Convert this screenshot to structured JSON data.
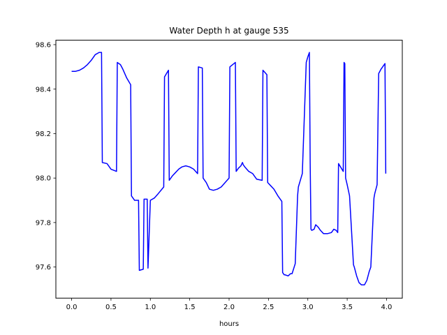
{
  "chart_data": {
    "type": "line",
    "title": "Water Depth h at gauge 535",
    "xlabel": "hours",
    "ylabel": "",
    "xlim": [
      -0.2,
      4.2
    ],
    "ylim": [
      97.46,
      98.62
    ],
    "xticks": [
      0.0,
      0.5,
      1.0,
      1.5,
      2.0,
      2.5,
      3.0,
      3.5,
      4.0
    ],
    "xtick_labels": [
      "0.0",
      "0.5",
      "1.0",
      "1.5",
      "2.0",
      "2.5",
      "3.0",
      "3.5",
      "4.0"
    ],
    "yticks": [
      97.6,
      97.8,
      98.0,
      98.2,
      98.4,
      98.6
    ],
    "ytick_labels": [
      "97.6",
      "97.8",
      "98.0",
      "98.2",
      "98.4",
      "98.6"
    ],
    "grid": false,
    "legend": "none",
    "series": [
      {
        "color": "#0000ff",
        "x": [
          0.0,
          0.05,
          0.1,
          0.15,
          0.2,
          0.25,
          0.3,
          0.35,
          0.38,
          0.39,
          0.45,
          0.5,
          0.57,
          0.58,
          0.62,
          0.65,
          0.7,
          0.75,
          0.76,
          0.8,
          0.85,
          0.86,
          0.91,
          0.92,
          0.96,
          0.97,
          1.0,
          1.05,
          1.1,
          1.17,
          1.18,
          1.23,
          1.24,
          1.28,
          1.32,
          1.36,
          1.4,
          1.45,
          1.5,
          1.55,
          1.6,
          1.61,
          1.66,
          1.67,
          1.71,
          1.75,
          1.8,
          1.85,
          1.9,
          1.95,
          2.0,
          2.01,
          2.08,
          2.09,
          2.12,
          2.15,
          2.17,
          2.18,
          2.2,
          2.25,
          2.3,
          2.35,
          2.42,
          2.43,
          2.48,
          2.49,
          2.53,
          2.57,
          2.62,
          2.67,
          2.68,
          2.7,
          2.71,
          2.75,
          2.78,
          2.8,
          2.84,
          2.87,
          2.88,
          2.93,
          2.98,
          3.0,
          3.02,
          3.03,
          3.04,
          3.05,
          3.08,
          3.1,
          3.13,
          3.16,
          3.2,
          3.25,
          3.3,
          3.33,
          3.36,
          3.38,
          3.39,
          3.45,
          3.46,
          3.47,
          3.48,
          3.5,
          3.53,
          3.58,
          3.59,
          3.62,
          3.65,
          3.68,
          3.72,
          3.75,
          3.78,
          3.8,
          3.84,
          3.85,
          3.88,
          3.9,
          3.93,
          3.98,
          3.99
        ],
        "y": [
          98.48,
          98.48,
          98.485,
          98.495,
          98.51,
          98.53,
          98.555,
          98.565,
          98.565,
          98.07,
          98.065,
          98.04,
          98.03,
          98.52,
          98.51,
          98.49,
          98.45,
          98.42,
          97.92,
          97.9,
          97.9,
          97.585,
          97.59,
          97.905,
          97.905,
          97.595,
          97.9,
          97.91,
          97.93,
          97.96,
          98.455,
          98.485,
          97.99,
          98.01,
          98.025,
          98.04,
          98.05,
          98.055,
          98.05,
          98.04,
          98.02,
          98.5,
          98.495,
          98.0,
          97.98,
          97.95,
          97.945,
          97.95,
          97.96,
          97.98,
          98.0,
          98.5,
          98.52,
          98.03,
          98.045,
          98.055,
          98.07,
          98.06,
          98.05,
          98.03,
          98.02,
          97.995,
          97.99,
          98.485,
          98.465,
          97.98,
          97.965,
          97.95,
          97.92,
          97.895,
          97.575,
          97.565,
          97.565,
          97.56,
          97.57,
          97.57,
          97.615,
          97.92,
          97.96,
          98.02,
          98.52,
          98.545,
          98.565,
          98.07,
          97.77,
          97.765,
          97.77,
          97.79,
          97.78,
          97.765,
          97.75,
          97.75,
          97.755,
          97.77,
          97.765,
          97.755,
          98.065,
          98.03,
          98.52,
          98.515,
          98.0,
          97.97,
          97.92,
          97.61,
          97.6,
          97.56,
          97.53,
          97.52,
          97.52,
          97.54,
          97.58,
          97.6,
          97.91,
          97.93,
          97.97,
          98.47,
          98.49,
          98.515,
          98.02
        ]
      }
    ]
  }
}
